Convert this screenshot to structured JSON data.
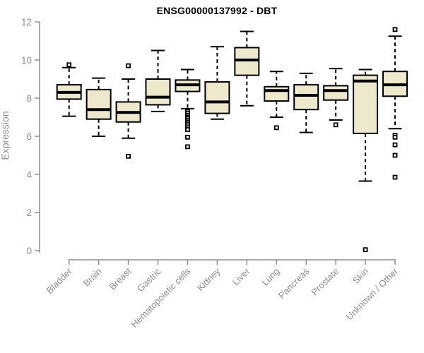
{
  "chart_data": {
    "type": "boxplot",
    "title": "ENSG00000137992 - DBT",
    "xlabel": "",
    "ylabel": "Expression",
    "ylim": [
      0,
      12
    ],
    "yticks": [
      0,
      2,
      4,
      6,
      8,
      10,
      12
    ],
    "grid": false,
    "legend": false,
    "colors": {
      "box_fill": "#EEE8CD",
      "box_stroke": "#000000",
      "median_stroke": "#000000",
      "whisker_stroke": "#000000",
      "outlier_stroke": "#000000",
      "outlier_fill": "#ffffff",
      "axis_line": "#8d8d8d",
      "tick_label": "#8d8d8d",
      "title_color": "#000000"
    },
    "categories": [
      "Bladder",
      "Brain",
      "Breast",
      "Gastric",
      "Hematopoietic cells",
      "Kidney",
      "Liver",
      "Lung",
      "Pancreas",
      "Prostate",
      "Skin",
      "Unknown / Other"
    ],
    "series": [
      {
        "category": "Bladder",
        "whisker_low": 7.05,
        "q1": 7.95,
        "median": 8.3,
        "q3": 8.7,
        "whisker_high": 9.6,
        "outliers": [
          9.75
        ]
      },
      {
        "category": "Brain",
        "whisker_low": 6.0,
        "q1": 6.9,
        "median": 7.4,
        "q3": 8.45,
        "whisker_high": 9.05,
        "outliers": []
      },
      {
        "category": "Breast",
        "whisker_low": 5.9,
        "q1": 6.75,
        "median": 7.25,
        "q3": 7.8,
        "whisker_high": 9.0,
        "outliers": [
          9.7,
          4.95
        ]
      },
      {
        "category": "Gastric",
        "whisker_low": 7.3,
        "q1": 7.65,
        "median": 8.05,
        "q3": 9.0,
        "whisker_high": 10.5,
        "outliers": []
      },
      {
        "category": "Hematopoietic cells",
        "whisker_low": 7.45,
        "q1": 8.35,
        "median": 8.7,
        "q3": 8.95,
        "whisker_high": 9.5,
        "outliers": [
          7.3,
          7.2,
          7.1,
          7.0,
          6.95,
          6.85,
          6.75,
          6.65,
          6.55,
          6.45,
          6.35,
          5.95,
          5.45
        ]
      },
      {
        "category": "Kidney",
        "whisker_low": 6.9,
        "q1": 7.2,
        "median": 7.8,
        "q3": 8.85,
        "whisker_high": 10.7,
        "outliers": []
      },
      {
        "category": "Liver",
        "whisker_low": 7.6,
        "q1": 9.2,
        "median": 10.0,
        "q3": 10.65,
        "whisker_high": 11.5,
        "outliers": []
      },
      {
        "category": "Lung",
        "whisker_low": 7.0,
        "q1": 7.85,
        "median": 8.4,
        "q3": 8.6,
        "whisker_high": 9.4,
        "outliers": [
          6.45
        ]
      },
      {
        "category": "Pancreas",
        "whisker_low": 6.2,
        "q1": 7.4,
        "median": 8.15,
        "q3": 8.7,
        "whisker_high": 9.3,
        "outliers": []
      },
      {
        "category": "Prostate",
        "whisker_low": 6.85,
        "q1": 7.9,
        "median": 8.4,
        "q3": 8.65,
        "whisker_high": 9.55,
        "outliers": [
          6.6
        ]
      },
      {
        "category": "Skin",
        "whisker_low": 3.65,
        "q1": 6.15,
        "median": 8.9,
        "q3": 9.2,
        "whisker_high": 9.5,
        "outliers": [
          0.05
        ]
      },
      {
        "category": "Unknown / Other",
        "whisker_low": 6.4,
        "q1": 8.1,
        "median": 8.7,
        "q3": 9.4,
        "whisker_high": 11.25,
        "outliers": [
          11.6,
          6.05,
          5.95,
          5.55,
          5.0,
          3.85
        ]
      }
    ]
  }
}
